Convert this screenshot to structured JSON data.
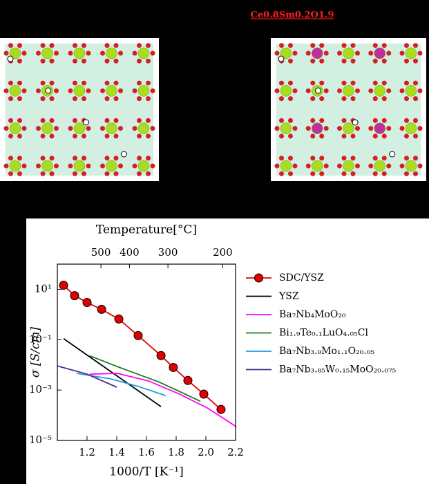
{
  "caption": "Ce0.8Sm0.2O1.9",
  "chart_data": {
    "type": "line",
    "log_y": true,
    "top_axis_label": "Temperature[°C]",
    "top_xticks": [
      500,
      400,
      300,
      200
    ],
    "xlabel": "1000/T [K⁻¹]",
    "ylabel": "σ [S/cm]",
    "xlim": [
      1.0,
      2.2
    ],
    "ylim": [
      1e-05,
      100
    ],
    "xticks": [
      1.2,
      1.4,
      1.6,
      1.8,
      {
        "value": 2.0,
        "label": "2.0"
      },
      2.2
    ],
    "yticks": [
      {
        "value": 10,
        "label": "10¹"
      },
      {
        "value": 0.1,
        "label": "10⁻¹"
      },
      {
        "value": 0.001,
        "label": "10⁻³"
      },
      {
        "value": 1e-05,
        "label": "10⁻⁵"
      }
    ],
    "series": [
      {
        "name": "SDC/YSZ",
        "color": "#e00000",
        "markers": true,
        "x": [
          1.042,
          1.116,
          1.2,
          1.298,
          1.414,
          1.544,
          1.698,
          1.781,
          1.879,
          1.986,
          2.102
        ],
        "values": [
          14.5,
          5.6,
          3.0,
          1.6,
          0.66,
          0.145,
          0.0234,
          0.0079,
          0.0024,
          0.00069,
          0.00017
        ]
      },
      {
        "name": "YSZ",
        "color": "#000000",
        "markers": false,
        "x": [
          1.042,
          1.698
        ],
        "values": [
          0.11,
          0.00022
        ]
      },
      {
        "name": "Ba₇Nb₄MoO₂₀",
        "color": "#ff00ff",
        "markers": false,
        "x": [
          1.219,
          1.405,
          1.614,
          1.823,
          2.009,
          2.205
        ],
        "values": [
          0.0043,
          0.0046,
          0.0023,
          0.00069,
          0.000195,
          3.5e-05
        ]
      },
      {
        "name": "Bi₁.₉Te₀.₁LuO₄.₀₅Cl",
        "color": "#1a7a1a",
        "markers": false,
        "x": [
          1.219,
          1.405,
          1.684,
          1.963
        ],
        "values": [
          0.023,
          0.0085,
          0.0021,
          0.00036
        ]
      },
      {
        "name": "Ba₇Nb₃.₉Mo₁.₁O₂₀.₀₅",
        "color": "#1e9be0",
        "markers": false,
        "x": [
          1.13,
          1.358,
          1.544,
          1.73
        ],
        "values": [
          0.0046,
          0.0028,
          0.0014,
          0.0006
        ]
      },
      {
        "name": "Ba₇Nb₃.₈₅W₀.₁₅MoO₂₀.₀₇₅",
        "color": "#4b2a8c",
        "markers": false,
        "x": [
          1.0,
          1.2,
          1.4
        ],
        "values": [
          0.0091,
          0.0043,
          0.0013
        ]
      }
    ]
  }
}
